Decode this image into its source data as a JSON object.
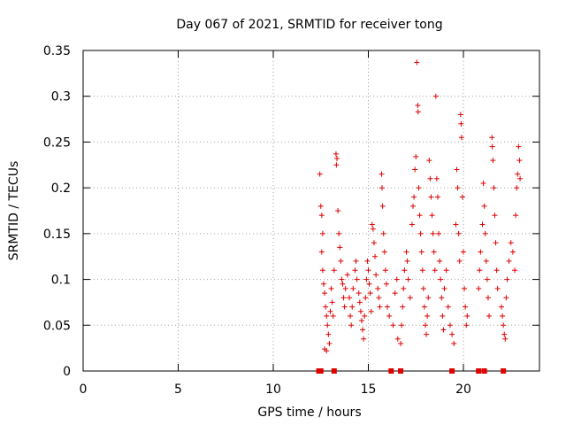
{
  "chart_data": {
    "type": "scatter",
    "title": "Day 067 of 2021, SRMTID for receiver tong",
    "xlabel": "GPS time / hours",
    "ylabel": "SRMTID / TECUs",
    "xlim": [
      0,
      24
    ],
    "ylim": [
      0,
      0.35
    ],
    "x_ticks": [
      0,
      5,
      10,
      15,
      20
    ],
    "x_tick_labels": [
      "0",
      "5",
      "10",
      "15",
      "20"
    ],
    "y_ticks": [
      0,
      0.05,
      0.1,
      0.15,
      0.2,
      0.25,
      0.3,
      0.35
    ],
    "y_tick_labels": [
      "0",
      "0.05",
      "0.1",
      "0.15",
      "0.2",
      "0.25",
      "0.3",
      "0.35"
    ],
    "grid": true,
    "series": [
      {
        "name": "SRMTID",
        "marker": "plus",
        "color": "#e00000",
        "points": [
          [
            12.45,
            0.215
          ],
          [
            12.5,
            0.18
          ],
          [
            12.55,
            0.17
          ],
          [
            12.6,
            0.15
          ],
          [
            12.55,
            0.13
          ],
          [
            12.6,
            0.11
          ],
          [
            12.65,
            0.095
          ],
          [
            12.7,
            0.085
          ],
          [
            12.75,
            0.07
          ],
          [
            12.8,
            0.06
          ],
          [
            12.85,
            0.05
          ],
          [
            12.9,
            0.04
          ],
          [
            12.95,
            0.03
          ],
          [
            12.7,
            0.024
          ],
          [
            12.8,
            0.022
          ],
          [
            13.0,
            0.065
          ],
          [
            13.05,
            0.09
          ],
          [
            13.1,
            0.075
          ],
          [
            13.15,
            0.06
          ],
          [
            13.2,
            0.11
          ],
          [
            13.3,
            0.237
          ],
          [
            13.35,
            0.232
          ],
          [
            13.32,
            0.225
          ],
          [
            13.4,
            0.175
          ],
          [
            13.45,
            0.15
          ],
          [
            13.5,
            0.135
          ],
          [
            13.55,
            0.12
          ],
          [
            13.6,
            0.1
          ],
          [
            13.65,
            0.095
          ],
          [
            13.7,
            0.08
          ],
          [
            13.75,
            0.07
          ],
          [
            13.8,
            0.09
          ],
          [
            13.9,
            0.105
          ],
          [
            14.0,
            0.08
          ],
          [
            14.05,
            0.06
          ],
          [
            14.1,
            0.05
          ],
          [
            14.15,
            0.07
          ],
          [
            14.2,
            0.09
          ],
          [
            14.3,
            0.11
          ],
          [
            14.35,
            0.12
          ],
          [
            14.4,
            0.1
          ],
          [
            14.5,
            0.085
          ],
          [
            14.55,
            0.075
          ],
          [
            14.6,
            0.065
          ],
          [
            14.65,
            0.055
          ],
          [
            14.7,
            0.045
          ],
          [
            14.75,
            0.035
          ],
          [
            14.8,
            0.06
          ],
          [
            14.85,
            0.08
          ],
          [
            14.9,
            0.1
          ],
          [
            14.95,
            0.12
          ],
          [
            15.0,
            0.11
          ],
          [
            15.05,
            0.095
          ],
          [
            15.1,
            0.085
          ],
          [
            15.15,
            0.065
          ],
          [
            15.2,
            0.16
          ],
          [
            15.25,
            0.155
          ],
          [
            15.3,
            0.14
          ],
          [
            15.35,
            0.125
          ],
          [
            15.4,
            0.105
          ],
          [
            15.5,
            0.09
          ],
          [
            15.55,
            0.08
          ],
          [
            15.6,
            0.07
          ],
          [
            15.7,
            0.215
          ],
          [
            15.72,
            0.2
          ],
          [
            15.75,
            0.18
          ],
          [
            15.8,
            0.15
          ],
          [
            15.85,
            0.13
          ],
          [
            15.9,
            0.11
          ],
          [
            15.95,
            0.095
          ],
          [
            16.0,
            0.07
          ],
          [
            16.1,
            0.06
          ],
          [
            16.3,
            0.05
          ],
          [
            16.4,
            0.085
          ],
          [
            16.5,
            0.1
          ],
          [
            16.55,
            0.035
          ],
          [
            16.7,
            0.03
          ],
          [
            16.75,
            0.05
          ],
          [
            16.8,
            0.07
          ],
          [
            16.85,
            0.09
          ],
          [
            16.9,
            0.11
          ],
          [
            17.0,
            0.13
          ],
          [
            17.05,
            0.12
          ],
          [
            17.1,
            0.1
          ],
          [
            17.2,
            0.08
          ],
          [
            17.3,
            0.16
          ],
          [
            17.35,
            0.18
          ],
          [
            17.4,
            0.19
          ],
          [
            17.45,
            0.22
          ],
          [
            17.5,
            0.234
          ],
          [
            17.55,
            0.337
          ],
          [
            17.6,
            0.29
          ],
          [
            17.62,
            0.283
          ],
          [
            17.65,
            0.2
          ],
          [
            17.7,
            0.17
          ],
          [
            17.75,
            0.15
          ],
          [
            17.8,
            0.13
          ],
          [
            17.85,
            0.11
          ],
          [
            17.9,
            0.09
          ],
          [
            17.95,
            0.07
          ],
          [
            18.0,
            0.05
          ],
          [
            18.05,
            0.04
          ],
          [
            18.1,
            0.06
          ],
          [
            18.15,
            0.08
          ],
          [
            18.2,
            0.23
          ],
          [
            18.25,
            0.21
          ],
          [
            18.3,
            0.19
          ],
          [
            18.35,
            0.17
          ],
          [
            18.4,
            0.15
          ],
          [
            18.45,
            0.13
          ],
          [
            18.5,
            0.11
          ],
          [
            18.55,
            0.3
          ],
          [
            18.6,
            0.21
          ],
          [
            18.65,
            0.19
          ],
          [
            18.7,
            0.15
          ],
          [
            18.75,
            0.12
          ],
          [
            18.8,
            0.1
          ],
          [
            18.85,
            0.08
          ],
          [
            18.9,
            0.06
          ],
          [
            18.95,
            0.045
          ],
          [
            19.0,
            0.09
          ],
          [
            19.1,
            0.11
          ],
          [
            19.2,
            0.07
          ],
          [
            19.3,
            0.05
          ],
          [
            19.4,
            0.04
          ],
          [
            19.5,
            0.03
          ],
          [
            19.6,
            0.16
          ],
          [
            19.65,
            0.22
          ],
          [
            19.7,
            0.2
          ],
          [
            19.75,
            0.15
          ],
          [
            19.8,
            0.12
          ],
          [
            19.85,
            0.28
          ],
          [
            19.88,
            0.27
          ],
          [
            19.9,
            0.255
          ],
          [
            19.95,
            0.19
          ],
          [
            20.0,
            0.13
          ],
          [
            20.05,
            0.09
          ],
          [
            20.1,
            0.07
          ],
          [
            20.15,
            0.05
          ],
          [
            20.2,
            0.06
          ],
          [
            20.8,
            0.09
          ],
          [
            20.85,
            0.11
          ],
          [
            20.9,
            0.13
          ],
          [
            21.0,
            0.16
          ],
          [
            21.05,
            0.205
          ],
          [
            21.1,
            0.18
          ],
          [
            21.15,
            0.15
          ],
          [
            21.2,
            0.12
          ],
          [
            21.25,
            0.1
          ],
          [
            21.3,
            0.08
          ],
          [
            21.35,
            0.06
          ],
          [
            21.5,
            0.255
          ],
          [
            21.52,
            0.245
          ],
          [
            21.55,
            0.23
          ],
          [
            21.6,
            0.2
          ],
          [
            21.65,
            0.17
          ],
          [
            21.7,
            0.14
          ],
          [
            21.75,
            0.11
          ],
          [
            21.8,
            0.09
          ],
          [
            22.0,
            0.07
          ],
          [
            22.05,
            0.06
          ],
          [
            22.1,
            0.05
          ],
          [
            22.15,
            0.04
          ],
          [
            22.2,
            0.035
          ],
          [
            22.25,
            0.08
          ],
          [
            22.3,
            0.1
          ],
          [
            22.4,
            0.12
          ],
          [
            22.5,
            0.14
          ],
          [
            22.6,
            0.13
          ],
          [
            22.7,
            0.11
          ],
          [
            22.75,
            0.17
          ],
          [
            22.8,
            0.2
          ],
          [
            22.85,
            0.215
          ],
          [
            22.9,
            0.245
          ],
          [
            22.95,
            0.23
          ],
          [
            22.98,
            0.21
          ]
        ]
      }
    ],
    "zero_markers": [
      12.4,
      12.5,
      13.2,
      16.2,
      16.7,
      19.4,
      20.8,
      21.1,
      22.1
    ]
  }
}
